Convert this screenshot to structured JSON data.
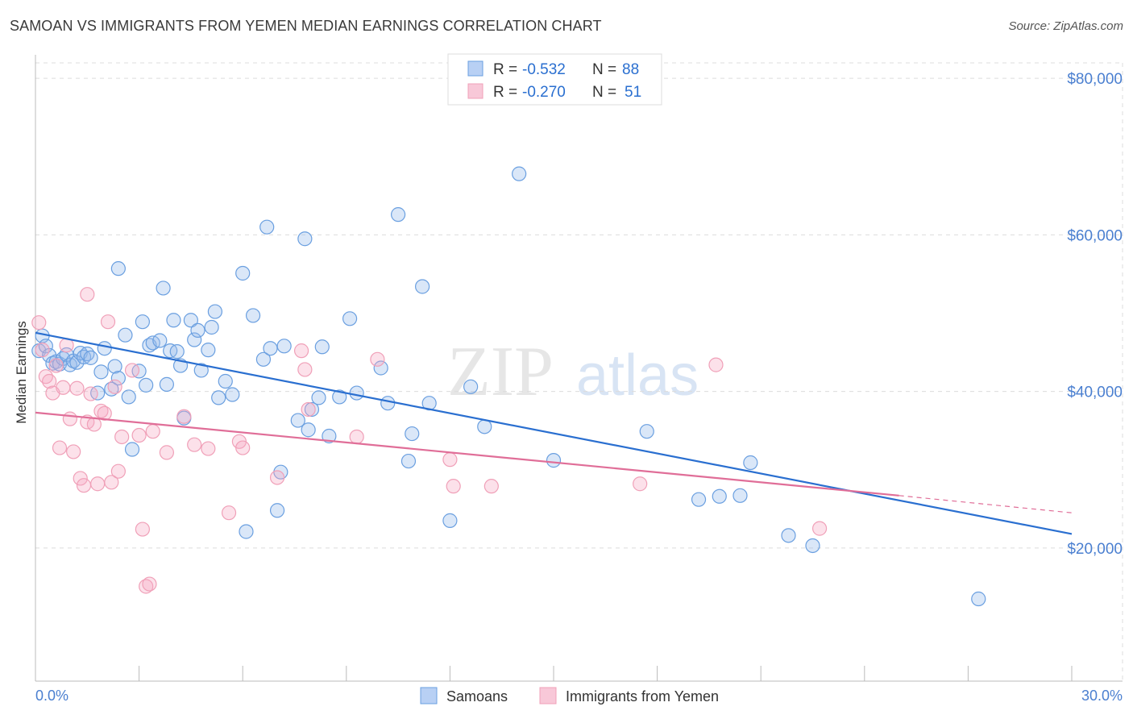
{
  "title": "SAMOAN VS IMMIGRANTS FROM YEMEN MEDIAN EARNINGS CORRELATION CHART",
  "source": "Source: ZipAtlas.com",
  "watermark": {
    "zip": "ZIP",
    "atlas": "atlas"
  },
  "chart_data": {
    "type": "scatter",
    "ylabel": "Median Earnings",
    "xlim": [
      0,
      30
    ],
    "ylim": [
      3000,
      83000
    ],
    "y_ticks": [
      20000,
      40000,
      60000,
      80000
    ],
    "y_tick_labels": [
      "$20,000",
      "$40,000",
      "$60,000",
      "$80,000"
    ],
    "x_tick_labels": [
      "0.0%",
      "30.0%"
    ],
    "grid": true,
    "legend_placement": "top-center",
    "stats": [
      {
        "r_label": "R =",
        "r": "-0.532",
        "n_label": "N =",
        "n": "88"
      },
      {
        "r_label": "R =",
        "r": "-0.270",
        "n_label": "N =",
        "n": "51"
      }
    ],
    "series": [
      {
        "name": "Samoans",
        "color": "#6a9fe0",
        "line_color": "#2a6fd0",
        "trend": {
          "x": [
            0,
            30
          ],
          "y": [
            47500,
            21800
          ]
        },
        "points": [
          [
            0.1,
            45200
          ],
          [
            0.2,
            47100
          ],
          [
            0.3,
            45800
          ],
          [
            0.4,
            44600
          ],
          [
            0.5,
            43600
          ],
          [
            0.6,
            43800
          ],
          [
            0.7,
            43500
          ],
          [
            0.8,
            44200
          ],
          [
            0.9,
            44700
          ],
          [
            1.0,
            43400
          ],
          [
            1.1,
            43900
          ],
          [
            1.2,
            43700
          ],
          [
            1.3,
            44900
          ],
          [
            1.4,
            44400
          ],
          [
            1.5,
            44800
          ],
          [
            1.6,
            44300
          ],
          [
            1.8,
            39800
          ],
          [
            1.9,
            42500
          ],
          [
            2.0,
            45500
          ],
          [
            2.2,
            40300
          ],
          [
            2.3,
            43200
          ],
          [
            2.4,
            41700
          ],
          [
            2.4,
            55700
          ],
          [
            2.6,
            47200
          ],
          [
            2.7,
            39300
          ],
          [
            2.8,
            32600
          ],
          [
            3.0,
            42600
          ],
          [
            3.1,
            48900
          ],
          [
            3.2,
            40800
          ],
          [
            3.3,
            45900
          ],
          [
            3.4,
            46200
          ],
          [
            3.6,
            46500
          ],
          [
            3.7,
            53200
          ],
          [
            3.8,
            40900
          ],
          [
            3.9,
            45200
          ],
          [
            4.0,
            49100
          ],
          [
            4.1,
            45100
          ],
          [
            4.2,
            43300
          ],
          [
            4.3,
            36600
          ],
          [
            4.5,
            49100
          ],
          [
            4.6,
            46600
          ],
          [
            4.7,
            47800
          ],
          [
            4.8,
            42700
          ],
          [
            5.0,
            45300
          ],
          [
            5.1,
            48200
          ],
          [
            5.2,
            50200
          ],
          [
            5.3,
            39200
          ],
          [
            5.5,
            41300
          ],
          [
            5.7,
            39600
          ],
          [
            6.0,
            55100
          ],
          [
            6.1,
            22100
          ],
          [
            6.3,
            49700
          ],
          [
            6.6,
            44100
          ],
          [
            6.7,
            61000
          ],
          [
            6.8,
            45500
          ],
          [
            7.0,
            24800
          ],
          [
            7.1,
            29700
          ],
          [
            7.2,
            45800
          ],
          [
            7.6,
            36300
          ],
          [
            7.8,
            59500
          ],
          [
            7.9,
            35100
          ],
          [
            8.0,
            37700
          ],
          [
            8.2,
            39200
          ],
          [
            8.3,
            45700
          ],
          [
            8.5,
            34300
          ],
          [
            8.8,
            39300
          ],
          [
            9.1,
            49300
          ],
          [
            9.3,
            39800
          ],
          [
            10.0,
            43000
          ],
          [
            10.2,
            38500
          ],
          [
            10.5,
            62600
          ],
          [
            10.8,
            31100
          ],
          [
            10.9,
            34600
          ],
          [
            11.2,
            53400
          ],
          [
            11.4,
            38500
          ],
          [
            12.0,
            23500
          ],
          [
            12.6,
            40600
          ],
          [
            13.0,
            35500
          ],
          [
            14.0,
            67800
          ],
          [
            15.0,
            31200
          ],
          [
            17.7,
            34900
          ],
          [
            19.2,
            26200
          ],
          [
            19.8,
            26600
          ],
          [
            20.4,
            26700
          ],
          [
            20.7,
            30900
          ],
          [
            21.8,
            21600
          ],
          [
            22.5,
            20300
          ],
          [
            27.3,
            13500
          ]
        ]
      },
      {
        "name": "Immigrants from Yemen",
        "color": "#f0a0b8",
        "line_color": "#e06e98",
        "trend": {
          "x": [
            0,
            25
          ],
          "y": [
            37300,
            26700
          ]
        },
        "trend_ext": {
          "x": [
            25,
            30
          ],
          "y": [
            26700,
            24500
          ]
        },
        "points": [
          [
            0.1,
            48800
          ],
          [
            0.2,
            45300
          ],
          [
            0.3,
            41900
          ],
          [
            0.4,
            41300
          ],
          [
            0.5,
            39800
          ],
          [
            0.6,
            43300
          ],
          [
            0.7,
            32800
          ],
          [
            0.8,
            40500
          ],
          [
            0.9,
            45900
          ],
          [
            1.0,
            36500
          ],
          [
            1.1,
            32300
          ],
          [
            1.2,
            40400
          ],
          [
            1.3,
            28900
          ],
          [
            1.4,
            28000
          ],
          [
            1.5,
            36100
          ],
          [
            1.6,
            39700
          ],
          [
            1.7,
            35800
          ],
          [
            1.8,
            28200
          ],
          [
            1.9,
            37500
          ],
          [
            2.0,
            37200
          ],
          [
            2.1,
            48900
          ],
          [
            2.2,
            28400
          ],
          [
            2.3,
            40600
          ],
          [
            2.4,
            29800
          ],
          [
            2.5,
            34200
          ],
          [
            2.8,
            42700
          ],
          [
            3.0,
            34400
          ],
          [
            3.1,
            22400
          ],
          [
            3.2,
            15100
          ],
          [
            3.3,
            15400
          ],
          [
            3.4,
            34900
          ],
          [
            3.8,
            32200
          ],
          [
            4.3,
            36800
          ],
          [
            4.6,
            33200
          ],
          [
            5.0,
            32700
          ],
          [
            5.6,
            24500
          ],
          [
            5.9,
            33600
          ],
          [
            6.0,
            32800
          ],
          [
            7.0,
            29000
          ],
          [
            7.7,
            45200
          ],
          [
            7.8,
            42800
          ],
          [
            7.9,
            37700
          ],
          [
            9.3,
            34200
          ],
          [
            9.9,
            44100
          ],
          [
            12.0,
            31300
          ],
          [
            12.1,
            27900
          ],
          [
            13.2,
            27900
          ],
          [
            17.5,
            28200
          ],
          [
            19.7,
            43400
          ],
          [
            22.7,
            22500
          ],
          [
            1.5,
            52400
          ]
        ]
      }
    ]
  }
}
